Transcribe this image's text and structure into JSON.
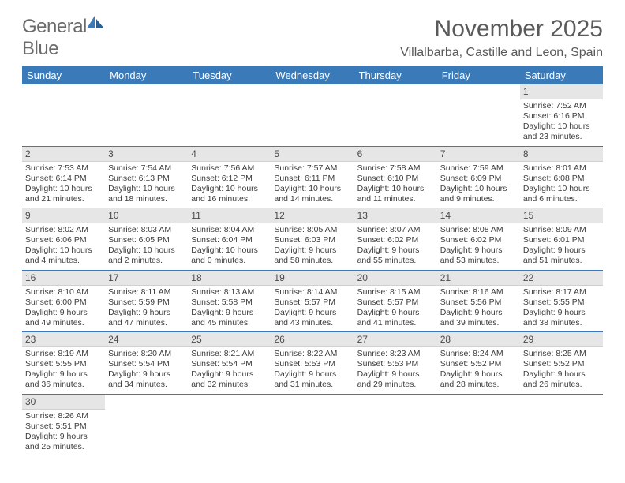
{
  "brand": {
    "part1": "General",
    "part2": "Blue"
  },
  "title": "November 2025",
  "location": "Villalbarba, Castille and Leon, Spain",
  "colors": {
    "header_bg": "#3a7ab8",
    "header_text": "#ffffff",
    "daynum_bg": "#e6e6e6",
    "text": "#3c3c3c",
    "logo_gray": "#6b6b6b",
    "logo_blue": "#3a7ab8",
    "border": "#3a7ab8"
  },
  "days_of_week": [
    "Sunday",
    "Monday",
    "Tuesday",
    "Wednesday",
    "Thursday",
    "Friday",
    "Saturday"
  ],
  "weeks": [
    [
      null,
      null,
      null,
      null,
      null,
      null,
      {
        "n": "1",
        "sr": "Sunrise: 7:52 AM",
        "ss": "Sunset: 6:16 PM",
        "d1": "Daylight: 10 hours",
        "d2": "and 23 minutes."
      }
    ],
    [
      {
        "n": "2",
        "sr": "Sunrise: 7:53 AM",
        "ss": "Sunset: 6:14 PM",
        "d1": "Daylight: 10 hours",
        "d2": "and 21 minutes."
      },
      {
        "n": "3",
        "sr": "Sunrise: 7:54 AM",
        "ss": "Sunset: 6:13 PM",
        "d1": "Daylight: 10 hours",
        "d2": "and 18 minutes."
      },
      {
        "n": "4",
        "sr": "Sunrise: 7:56 AM",
        "ss": "Sunset: 6:12 PM",
        "d1": "Daylight: 10 hours",
        "d2": "and 16 minutes."
      },
      {
        "n": "5",
        "sr": "Sunrise: 7:57 AM",
        "ss": "Sunset: 6:11 PM",
        "d1": "Daylight: 10 hours",
        "d2": "and 14 minutes."
      },
      {
        "n": "6",
        "sr": "Sunrise: 7:58 AM",
        "ss": "Sunset: 6:10 PM",
        "d1": "Daylight: 10 hours",
        "d2": "and 11 minutes."
      },
      {
        "n": "7",
        "sr": "Sunrise: 7:59 AM",
        "ss": "Sunset: 6:09 PM",
        "d1": "Daylight: 10 hours",
        "d2": "and 9 minutes."
      },
      {
        "n": "8",
        "sr": "Sunrise: 8:01 AM",
        "ss": "Sunset: 6:08 PM",
        "d1": "Daylight: 10 hours",
        "d2": "and 6 minutes."
      }
    ],
    [
      {
        "n": "9",
        "sr": "Sunrise: 8:02 AM",
        "ss": "Sunset: 6:06 PM",
        "d1": "Daylight: 10 hours",
        "d2": "and 4 minutes."
      },
      {
        "n": "10",
        "sr": "Sunrise: 8:03 AM",
        "ss": "Sunset: 6:05 PM",
        "d1": "Daylight: 10 hours",
        "d2": "and 2 minutes."
      },
      {
        "n": "11",
        "sr": "Sunrise: 8:04 AM",
        "ss": "Sunset: 6:04 PM",
        "d1": "Daylight: 10 hours",
        "d2": "and 0 minutes."
      },
      {
        "n": "12",
        "sr": "Sunrise: 8:05 AM",
        "ss": "Sunset: 6:03 PM",
        "d1": "Daylight: 9 hours",
        "d2": "and 58 minutes."
      },
      {
        "n": "13",
        "sr": "Sunrise: 8:07 AM",
        "ss": "Sunset: 6:02 PM",
        "d1": "Daylight: 9 hours",
        "d2": "and 55 minutes."
      },
      {
        "n": "14",
        "sr": "Sunrise: 8:08 AM",
        "ss": "Sunset: 6:02 PM",
        "d1": "Daylight: 9 hours",
        "d2": "and 53 minutes."
      },
      {
        "n": "15",
        "sr": "Sunrise: 8:09 AM",
        "ss": "Sunset: 6:01 PM",
        "d1": "Daylight: 9 hours",
        "d2": "and 51 minutes."
      }
    ],
    [
      {
        "n": "16",
        "sr": "Sunrise: 8:10 AM",
        "ss": "Sunset: 6:00 PM",
        "d1": "Daylight: 9 hours",
        "d2": "and 49 minutes."
      },
      {
        "n": "17",
        "sr": "Sunrise: 8:11 AM",
        "ss": "Sunset: 5:59 PM",
        "d1": "Daylight: 9 hours",
        "d2": "and 47 minutes."
      },
      {
        "n": "18",
        "sr": "Sunrise: 8:13 AM",
        "ss": "Sunset: 5:58 PM",
        "d1": "Daylight: 9 hours",
        "d2": "and 45 minutes."
      },
      {
        "n": "19",
        "sr": "Sunrise: 8:14 AM",
        "ss": "Sunset: 5:57 PM",
        "d1": "Daylight: 9 hours",
        "d2": "and 43 minutes."
      },
      {
        "n": "20",
        "sr": "Sunrise: 8:15 AM",
        "ss": "Sunset: 5:57 PM",
        "d1": "Daylight: 9 hours",
        "d2": "and 41 minutes."
      },
      {
        "n": "21",
        "sr": "Sunrise: 8:16 AM",
        "ss": "Sunset: 5:56 PM",
        "d1": "Daylight: 9 hours",
        "d2": "and 39 minutes."
      },
      {
        "n": "22",
        "sr": "Sunrise: 8:17 AM",
        "ss": "Sunset: 5:55 PM",
        "d1": "Daylight: 9 hours",
        "d2": "and 38 minutes."
      }
    ],
    [
      {
        "n": "23",
        "sr": "Sunrise: 8:19 AM",
        "ss": "Sunset: 5:55 PM",
        "d1": "Daylight: 9 hours",
        "d2": "and 36 minutes."
      },
      {
        "n": "24",
        "sr": "Sunrise: 8:20 AM",
        "ss": "Sunset: 5:54 PM",
        "d1": "Daylight: 9 hours",
        "d2": "and 34 minutes."
      },
      {
        "n": "25",
        "sr": "Sunrise: 8:21 AM",
        "ss": "Sunset: 5:54 PM",
        "d1": "Daylight: 9 hours",
        "d2": "and 32 minutes."
      },
      {
        "n": "26",
        "sr": "Sunrise: 8:22 AM",
        "ss": "Sunset: 5:53 PM",
        "d1": "Daylight: 9 hours",
        "d2": "and 31 minutes."
      },
      {
        "n": "27",
        "sr": "Sunrise: 8:23 AM",
        "ss": "Sunset: 5:53 PM",
        "d1": "Daylight: 9 hours",
        "d2": "and 29 minutes."
      },
      {
        "n": "28",
        "sr": "Sunrise: 8:24 AM",
        "ss": "Sunset: 5:52 PM",
        "d1": "Daylight: 9 hours",
        "d2": "and 28 minutes."
      },
      {
        "n": "29",
        "sr": "Sunrise: 8:25 AM",
        "ss": "Sunset: 5:52 PM",
        "d1": "Daylight: 9 hours",
        "d2": "and 26 minutes."
      }
    ],
    [
      {
        "n": "30",
        "sr": "Sunrise: 8:26 AM",
        "ss": "Sunset: 5:51 PM",
        "d1": "Daylight: 9 hours",
        "d2": "and 25 minutes."
      },
      null,
      null,
      null,
      null,
      null,
      null
    ]
  ]
}
